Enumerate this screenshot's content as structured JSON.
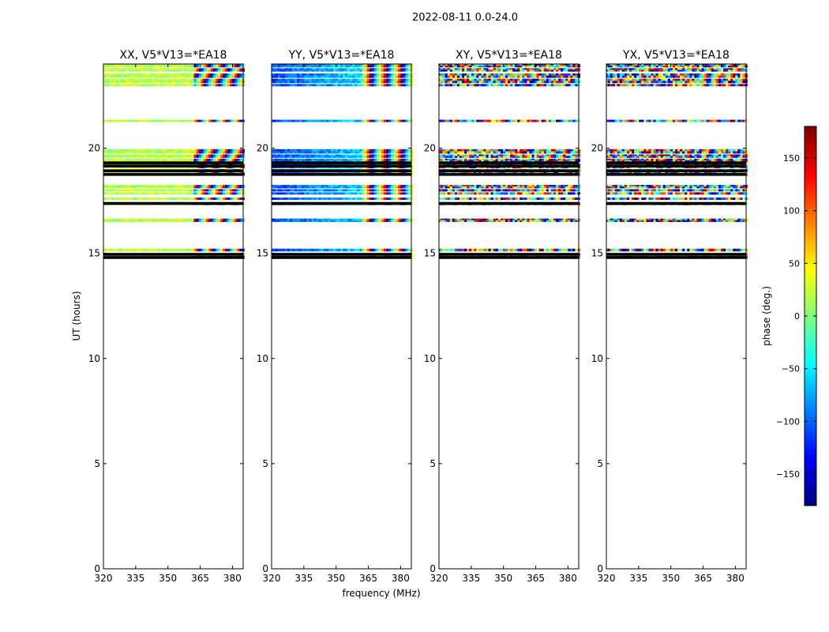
{
  "figure": {
    "suptitle": "2022-08-11 0.0-24.0",
    "xlabel": "frequency (MHz)",
    "ylabel": "UT (hours)"
  },
  "chart_data": {
    "type": "heatmap",
    "xlim": [
      320,
      385
    ],
    "ylim": [
      0,
      24
    ],
    "xticks": [
      320,
      335,
      350,
      365,
      380
    ],
    "yticks": [
      0,
      5,
      10,
      15,
      20
    ],
    "panels": [
      {
        "title": "XX, V5*V13=*EA18",
        "mode": "xx"
      },
      {
        "title": "YY, V5*V13=*EA18",
        "mode": "yy"
      },
      {
        "title": "XY, V5*V13=*EA18",
        "mode": "xy"
      },
      {
        "title": "YX, V5*V13=*EA18",
        "mode": "yx"
      }
    ],
    "data_bands_ut": [
      [
        14.75,
        14.88
      ],
      [
        14.9,
        15.0
      ],
      [
        15.1,
        15.22
      ],
      [
        16.5,
        16.65
      ],
      [
        17.3,
        17.42
      ],
      [
        17.55,
        17.65
      ],
      [
        17.8,
        17.9
      ],
      [
        17.95,
        18.05
      ],
      [
        18.1,
        18.25
      ],
      [
        18.7,
        18.85
      ],
      [
        18.88,
        19.0
      ],
      [
        19.05,
        19.25
      ],
      [
        19.35,
        19.5
      ],
      [
        19.55,
        19.7
      ],
      [
        19.75,
        19.95
      ],
      [
        21.25,
        21.35
      ],
      [
        22.95,
        23.05
      ],
      [
        23.1,
        23.3
      ],
      [
        23.35,
        23.55
      ],
      [
        23.65,
        23.8
      ],
      [
        23.85,
        24.0
      ]
    ],
    "flagged_rows_ut": [
      14.8,
      14.95,
      17.37,
      18.75,
      18.92,
      19.15,
      19.3
    ],
    "colorbar": {
      "label": "phase (deg.)",
      "min": -180,
      "max": 180,
      "ticks": [
        150,
        100,
        50,
        0,
        -50,
        -100,
        -150
      ],
      "tick_labels": [
        "150",
        "100",
        "50",
        "0",
        "−50",
        "−100",
        "−150"
      ],
      "colormap": "jet"
    }
  }
}
